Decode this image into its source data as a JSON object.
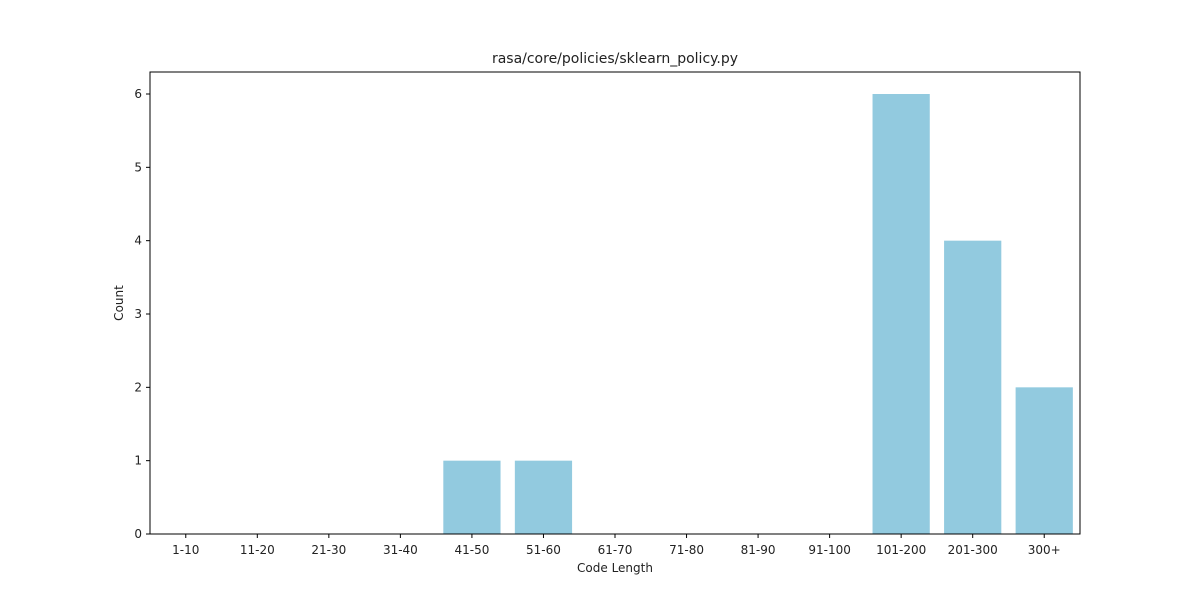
{
  "chart_data": {
    "type": "bar",
    "title": "rasa/core/policies/sklearn_policy.py",
    "xlabel": "Code Length",
    "ylabel": "Count",
    "categories": [
      "1-10",
      "11-20",
      "21-30",
      "31-40",
      "41-50",
      "51-60",
      "61-70",
      "71-80",
      "81-90",
      "91-100",
      "101-200",
      "201-300",
      "300+"
    ],
    "values": [
      0,
      0,
      0,
      0,
      1,
      1,
      0,
      0,
      0,
      0,
      6,
      4,
      2
    ],
    "ylim": [
      0,
      6.3
    ],
    "yticks": [
      0,
      1,
      2,
      3,
      4,
      5,
      6
    ],
    "bar_color": "#92cadf",
    "grid": false,
    "legend": "none"
  }
}
